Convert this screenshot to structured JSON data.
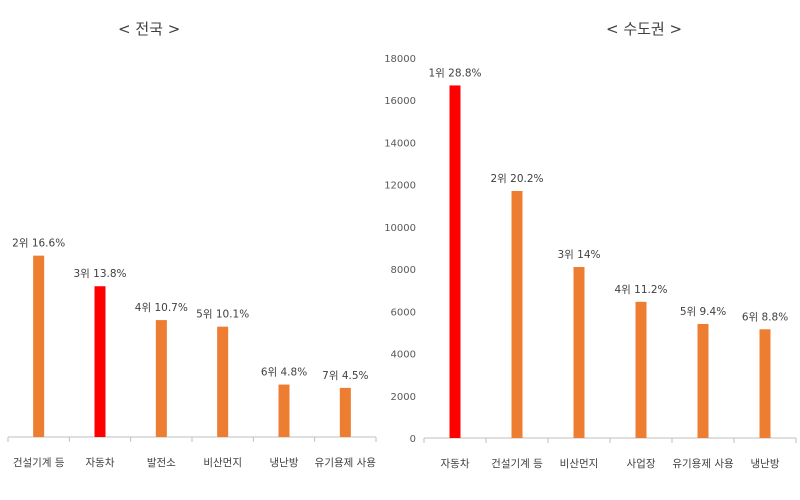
{
  "chart_data": [
    {
      "type": "bar",
      "title": "< 전국 >",
      "categories": [
        "건설기계 등",
        "자동차",
        "발전소",
        "비산먼지",
        "냉난방",
        "유기용제 사용"
      ],
      "values": [
        16.6,
        13.8,
        10.7,
        10.1,
        4.8,
        4.5
      ],
      "data_labels": [
        "2위 16.6%",
        "3위 13.8%",
        "4위 10.7%",
        "5위 10.1%",
        "6위 4.8%",
        "7위 4.5%"
      ],
      "colors": [
        "#ED7D31",
        "#FF0000",
        "#ED7D31",
        "#ED7D31",
        "#ED7D31",
        "#ED7D31"
      ],
      "ylim": [
        0,
        40
      ],
      "y_axis_visible": false,
      "grid": false
    },
    {
      "type": "bar",
      "title": "< 수도권 >",
      "categories": [
        "자동차",
        "건설기계 등",
        "비산먼지",
        "사업장",
        "유기용제 사용",
        "냉난방"
      ],
      "values": [
        16700,
        11700,
        8100,
        6450,
        5400,
        5150
      ],
      "data_labels": [
        "1위 28.8%",
        "2위 20.2%",
        "3위 14%",
        "4위 11.2%",
        "5위 9.4%",
        "6위 8.8%"
      ],
      "colors": [
        "#FF0000",
        "#ED7D31",
        "#ED7D31",
        "#ED7D31",
        "#ED7D31",
        "#ED7D31"
      ],
      "ylim": [
        0,
        18000
      ],
      "yticks": [
        0,
        2000,
        4000,
        6000,
        8000,
        10000,
        12000,
        14000,
        16000,
        18000
      ],
      "y_axis_visible": true,
      "grid": false
    }
  ]
}
